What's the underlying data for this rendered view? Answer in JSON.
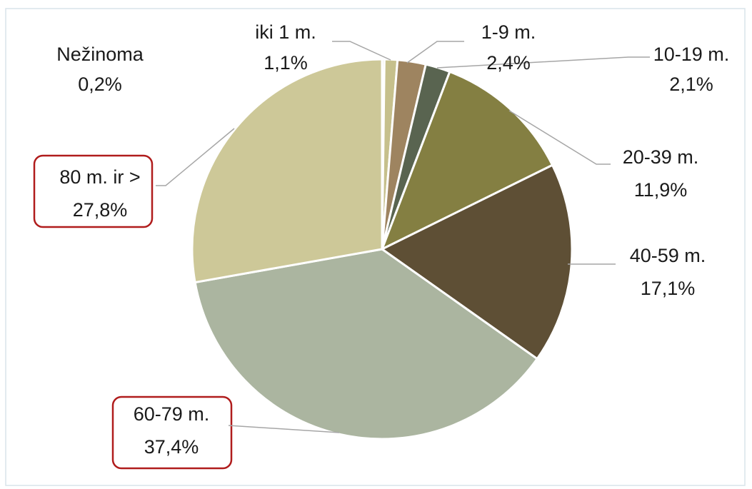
{
  "chart_data": {
    "type": "pie",
    "categories": [
      "Nežinoma",
      "iki 1 m.",
      "1-9 m.",
      "10-19 m.",
      "20-39 m.",
      "40-59 m.",
      "60-79 m.",
      "80 m. ir >"
    ],
    "values": [
      0.2,
      1.1,
      2.4,
      2.1,
      11.9,
      17.1,
      37.4,
      27.8
    ],
    "value_labels": [
      "0,2%",
      "1,1%",
      "2,4%",
      "2,1%",
      "11,9%",
      "17,1%",
      "37,4%",
      "27,8%"
    ],
    "colors": [
      "#bdb98e",
      "#c6c08c",
      "#9e8460",
      "#596450",
      "#847f42",
      "#5e4f35",
      "#abb5a0",
      "#cdc898"
    ]
  }
}
